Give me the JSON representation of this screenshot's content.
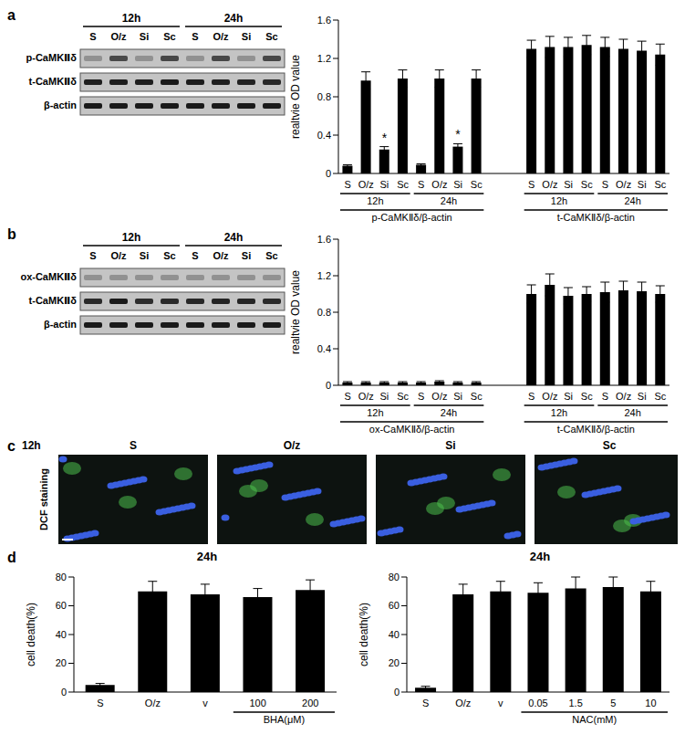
{
  "figure": {
    "panels": [
      {
        "label": "a",
        "blot": {
          "time_groups": [
            {
              "label": "12h",
              "lanes": [
                "S",
                "O/z",
                "Si",
                "Sc"
              ]
            },
            {
              "label": "24h",
              "lanes": [
                "S",
                "O/z",
                "Si",
                "Sc"
              ]
            }
          ],
          "rows": [
            "p-CaMKⅡδ",
            "t-CaMKⅡδ",
            "β-actin"
          ]
        }
      },
      {
        "label": "b",
        "blot": {
          "time_groups": [
            {
              "label": "12h",
              "lanes": [
                "S",
                "O/z",
                "Si",
                "Sc"
              ]
            },
            {
              "label": "24h",
              "lanes": [
                "S",
                "O/z",
                "Si",
                "Sc"
              ]
            }
          ],
          "rows": [
            "ox-CaMKⅡδ",
            "t-CaMKⅡδ",
            "β-actin"
          ]
        }
      },
      {
        "label": "c",
        "image": {
          "time": "12h",
          "stain": "DCF staining",
          "conditions": [
            "S",
            "O/z",
            "Si",
            "Sc"
          ]
        }
      },
      {
        "label": "d"
      }
    ]
  },
  "chart_data": [
    {
      "type": "bar",
      "ylabel": "realtvie OD value",
      "color": "#000000",
      "grid": false,
      "categories": [
        "S",
        "O/z",
        "Si",
        "Sc",
        "S",
        "O/z",
        "Si",
        "Sc",
        null,
        null,
        "S",
        "O/z",
        "Si",
        "Sc",
        "S",
        "O/z",
        "Si",
        "Sc"
      ],
      "values": [
        0.08,
        0.97,
        0.25,
        0.99,
        0.09,
        0.99,
        0.28,
        0.99,
        null,
        null,
        1.3,
        1.32,
        1.32,
        1.34,
        1.32,
        1.3,
        1.28,
        1.24
      ],
      "errors": [
        0.01,
        0.09,
        0.03,
        0.09,
        0.01,
        0.09,
        0.03,
        0.09,
        null,
        null,
        0.09,
        0.11,
        0.1,
        0.1,
        0.1,
        0.1,
        0.1,
        0.11
      ],
      "ylim": [
        0,
        1.6
      ],
      "yticks": [
        0,
        0.4,
        0.8,
        1.2,
        1.6
      ],
      "annotations": [
        {
          "index": 2,
          "text": "*"
        },
        {
          "index": 6,
          "text": "*"
        }
      ],
      "groups": [
        [
          {
            "label": "12h",
            "first": 0,
            "last": 3
          },
          {
            "label": "24h",
            "first": 4,
            "last": 7
          },
          {
            "label": "12h",
            "first": 10,
            "last": 13
          },
          {
            "label": "24h",
            "first": 14,
            "last": 17
          }
        ],
        [
          {
            "label": "p-CaMKⅡδ/β-actin",
            "first": 0,
            "last": 7
          },
          {
            "label": "t-CaMKⅡδ/β-actin",
            "first": 10,
            "last": 17
          }
        ]
      ]
    },
    {
      "type": "bar",
      "ylabel": "realtvie OD value",
      "color": "#000000",
      "grid": false,
      "categories": [
        "S",
        "O/z",
        "Si",
        "Sc",
        "S",
        "O/z",
        "Si",
        "Sc",
        null,
        null,
        "S",
        "O/z",
        "Si",
        "Sc",
        "S",
        "O/z",
        "Si",
        "Sc"
      ],
      "values": [
        0.03,
        0.03,
        0.03,
        0.03,
        0.03,
        0.04,
        0.03,
        0.03,
        null,
        null,
        1.0,
        1.1,
        0.98,
        1.0,
        1.02,
        1.04,
        1.03,
        1.0
      ],
      "errors": [
        0.01,
        0.01,
        0.01,
        0.01,
        0.01,
        0.01,
        0.01,
        0.01,
        null,
        null,
        0.1,
        0.12,
        0.09,
        0.08,
        0.11,
        0.1,
        0.1,
        0.09
      ],
      "ylim": [
        0,
        1.6
      ],
      "yticks": [
        0,
        0.4,
        0.8,
        1.2,
        1.6
      ],
      "groups": [
        [
          {
            "label": "12h",
            "first": 0,
            "last": 3
          },
          {
            "label": "24h",
            "first": 4,
            "last": 7
          },
          {
            "label": "12h",
            "first": 10,
            "last": 13
          },
          {
            "label": "24h",
            "first": 14,
            "last": 17
          }
        ],
        [
          {
            "label": "ox-CaMKⅡδ/β-actin",
            "first": 0,
            "last": 7
          },
          {
            "label": "t-CaMKⅡδ/β-actin",
            "first": 10,
            "last": 17
          }
        ]
      ]
    },
    {
      "type": "bar",
      "title": "24h",
      "ylabel": "cell death(%)",
      "color": "#000000",
      "grid": false,
      "categories": [
        "S",
        "O/z",
        "v",
        "100",
        "200"
      ],
      "values": [
        5,
        70,
        68,
        66,
        71
      ],
      "errors": [
        1,
        7,
        7,
        6,
        7
      ],
      "ylim": [
        0,
        80
      ],
      "yticks": [
        0,
        20,
        40,
        60,
        80
      ],
      "groups": [
        [
          {
            "label": "BHA(μM)",
            "first": 3,
            "last": 4
          }
        ]
      ]
    },
    {
      "type": "bar",
      "title": "24h",
      "ylabel": "cell death(%)",
      "color": "#000000",
      "grid": false,
      "categories": [
        "S",
        "O/z",
        "v",
        "0.05",
        "1.5",
        "5",
        "10"
      ],
      "values": [
        3,
        68,
        70,
        69,
        72,
        73,
        70
      ],
      "errors": [
        1,
        7,
        7,
        7,
        8,
        7,
        7
      ],
      "ylim": [
        0,
        80
      ],
      "yticks": [
        0,
        20,
        40,
        60,
        80
      ],
      "groups": [
        [
          {
            "label": "NAC(mM)",
            "first": 3,
            "last": 6
          }
        ]
      ]
    }
  ]
}
